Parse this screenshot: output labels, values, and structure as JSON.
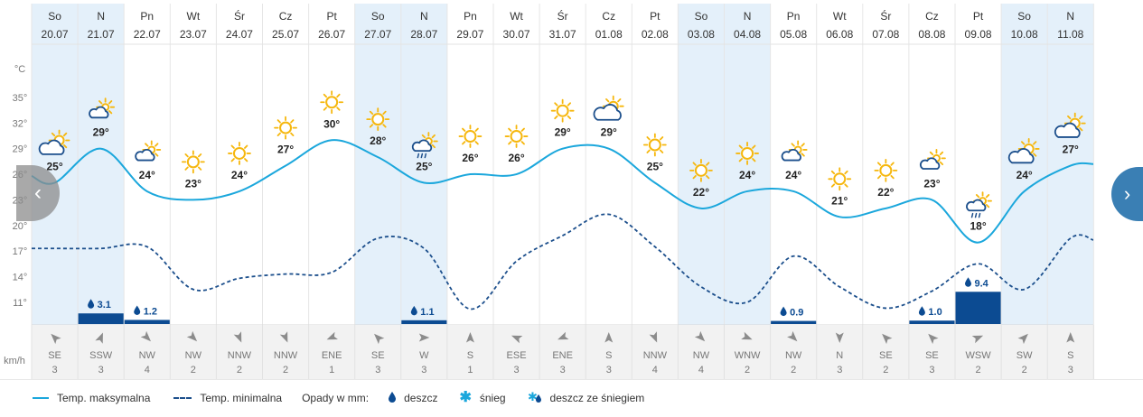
{
  "units": {
    "temp": "°C",
    "wind": "km/h"
  },
  "y_axis": {
    "ticks": [
      35,
      32,
      29,
      26,
      23,
      20,
      17,
      14,
      11
    ]
  },
  "days": [
    {
      "day": "So",
      "date": "20.07",
      "icon": "partly-cloudy-sun-icon",
      "tmax": 25,
      "tmin": 17.3,
      "precip": null,
      "wind_dir": "SE",
      "wind_speed": "3"
    },
    {
      "day": "N",
      "date": "21.07",
      "icon": "cloud-sun-small-icon",
      "tmax": 29,
      "tmin": 17.3,
      "precip": "3.1",
      "wind_dir": "SSW",
      "wind_speed": "3"
    },
    {
      "day": "Pn",
      "date": "22.07",
      "icon": "cloud-sun-small-icon",
      "tmax": 24,
      "tmin": 17.5,
      "precip": "1.2",
      "wind_dir": "NW",
      "wind_speed": "4"
    },
    {
      "day": "Wt",
      "date": "23.07",
      "icon": "sun-icon",
      "tmax": 23,
      "tmin": 12.5,
      "precip": null,
      "wind_dir": "NW",
      "wind_speed": "2"
    },
    {
      "day": "Śr",
      "date": "24.07",
      "icon": "sun-icon",
      "tmax": 24,
      "tmin": 13.8,
      "precip": null,
      "wind_dir": "NNW",
      "wind_speed": "2"
    },
    {
      "day": "Cz",
      "date": "25.07",
      "icon": "sun-icon",
      "tmax": 27,
      "tmin": 14.3,
      "precip": null,
      "wind_dir": "NNW",
      "wind_speed": "2"
    },
    {
      "day": "Pt",
      "date": "26.07",
      "icon": "sun-icon",
      "tmax": 30,
      "tmin": 14.5,
      "precip": null,
      "wind_dir": "ENE",
      "wind_speed": "1"
    },
    {
      "day": "So",
      "date": "27.07",
      "icon": "sun-icon",
      "tmax": 28,
      "tmin": 18.5,
      "precip": null,
      "wind_dir": "SE",
      "wind_speed": "3"
    },
    {
      "day": "N",
      "date": "28.07",
      "icon": "cloud-rain-sun-icon",
      "tmax": 25,
      "tmin": 17.3,
      "precip": "1.1",
      "wind_dir": "W",
      "wind_speed": "3"
    },
    {
      "day": "Pn",
      "date": "29.07",
      "icon": "sun-icon",
      "tmax": 26,
      "tmin": 10.2,
      "precip": null,
      "wind_dir": "S",
      "wind_speed": "1"
    },
    {
      "day": "Wt",
      "date": "30.07",
      "icon": "sun-icon",
      "tmax": 26,
      "tmin": 15.8,
      "precip": null,
      "wind_dir": "ESE",
      "wind_speed": "3"
    },
    {
      "day": "Śr",
      "date": "31.07",
      "icon": "sun-icon",
      "tmax": 29,
      "tmin": 18.8,
      "precip": null,
      "wind_dir": "ENE",
      "wind_speed": "3"
    },
    {
      "day": "Cz",
      "date": "01.08",
      "icon": "cloud-sun-icon",
      "tmax": 29,
      "tmin": 21.3,
      "precip": null,
      "wind_dir": "S",
      "wind_speed": "3"
    },
    {
      "day": "Pt",
      "date": "02.08",
      "icon": "sun-icon",
      "tmax": 25,
      "tmin": 17.5,
      "precip": null,
      "wind_dir": "NNW",
      "wind_speed": "4"
    },
    {
      "day": "So",
      "date": "03.08",
      "icon": "sun-icon",
      "tmax": 22,
      "tmin": 12.8,
      "precip": null,
      "wind_dir": "NW",
      "wind_speed": "4"
    },
    {
      "day": "N",
      "date": "04.08",
      "icon": "sun-icon",
      "tmax": 24,
      "tmin": 11.0,
      "precip": null,
      "wind_dir": "WNW",
      "wind_speed": "2"
    },
    {
      "day": "Pn",
      "date": "05.08",
      "icon": "cloud-sun-small-icon",
      "tmax": 24,
      "tmin": 16.4,
      "precip": "0.9",
      "wind_dir": "NW",
      "wind_speed": "2"
    },
    {
      "day": "Wt",
      "date": "06.08",
      "icon": "sun-icon",
      "tmax": 21,
      "tmin": 12.8,
      "precip": null,
      "wind_dir": "N",
      "wind_speed": "3"
    },
    {
      "day": "Śr",
      "date": "07.08",
      "icon": "sun-icon",
      "tmax": 22,
      "tmin": 10.3,
      "precip": null,
      "wind_dir": "SE",
      "wind_speed": "2"
    },
    {
      "day": "Cz",
      "date": "08.08",
      "icon": "cloud-sun-small-icon",
      "tmax": 23,
      "tmin": 12.3,
      "precip": "1.0",
      "wind_dir": "SE",
      "wind_speed": "3"
    },
    {
      "day": "Pt",
      "date": "09.08",
      "icon": "cloud-rain-sun-icon",
      "tmax": 18,
      "tmin": 15.5,
      "precip": "9.4",
      "wind_dir": "WSW",
      "wind_speed": "2"
    },
    {
      "day": "So",
      "date": "10.08",
      "icon": "partly-cloudy-sun-icon",
      "tmax": 24,
      "tmin": 12.5,
      "precip": null,
      "wind_dir": "SW",
      "wind_speed": "2"
    },
    {
      "day": "N",
      "date": "11.08",
      "icon": "partly-cloudy-sun-icon",
      "tmax": 27,
      "tmin": 18.5,
      "precip": null,
      "wind_dir": "S",
      "wind_speed": "3"
    }
  ],
  "weekend_indexes": [
    0,
    1,
    7,
    8,
    14,
    15,
    21,
    22
  ],
  "colors": {
    "max": "#1ba7dc",
    "min": "#1c4f8c",
    "precip": "#0c4b92",
    "weekend": "#e4f0fa",
    "sun": "#f6b70d",
    "cloud": "#1c4f8c"
  },
  "legend": {
    "max_label": "Temp. maksymalna",
    "min_label": "Temp. minimalna",
    "precip_label": "Opady w mm:",
    "rain_label": "deszcz",
    "snow_label": "śnieg",
    "mixed_label": "deszcz ze śniegiem"
  },
  "nav": {
    "prev_icon": "chevron-left-icon",
    "next_icon": "chevron-right-icon"
  }
}
